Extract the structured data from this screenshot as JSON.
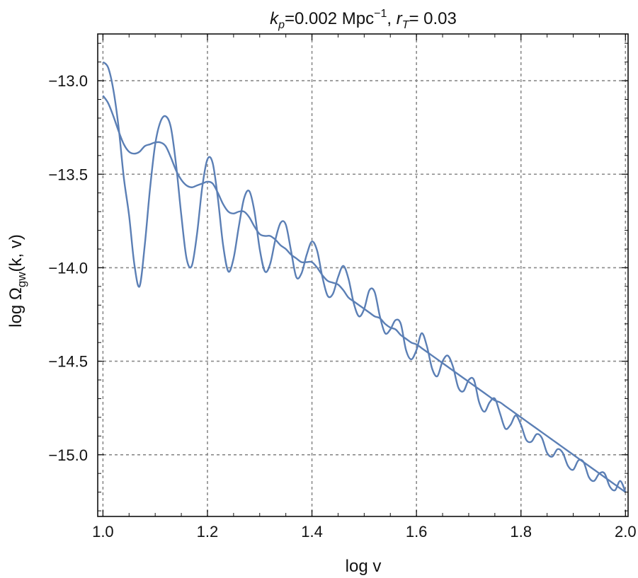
{
  "chart_data": {
    "type": "line",
    "title": {
      "k_symbol": "k",
      "k_subscript": "p",
      "k_value": "=0.002 Mpc",
      "k_unit_superscript": "−1",
      "separator": ", ",
      "r_symbol": "r",
      "r_subscript": "T",
      "r_value": "= 0.03"
    },
    "xlabel": "log v",
    "ylabel": {
      "prefix": "log Ω",
      "subscript": "gw",
      "suffix": "(k, v)"
    },
    "xlim": [
      0.99,
      2.005
    ],
    "ylim": [
      -15.33,
      -12.75
    ],
    "x_ticks": [
      {
        "value": 1.0,
        "label": "1.0"
      },
      {
        "value": 1.2,
        "label": "1.2"
      },
      {
        "value": 1.4,
        "label": "1.4"
      },
      {
        "value": 1.6,
        "label": "1.6"
      },
      {
        "value": 1.8,
        "label": "1.8"
      },
      {
        "value": 2.0,
        "label": "2.0"
      }
    ],
    "y_ticks": [
      {
        "value": -13.0,
        "label": "−13.0"
      },
      {
        "value": -13.5,
        "label": "−13.5"
      },
      {
        "value": -14.0,
        "label": "−14.0"
      },
      {
        "value": -14.5,
        "label": "−14.5"
      },
      {
        "value": -15.0,
        "label": "−15.0"
      }
    ],
    "grid": true,
    "line_color": "#5b7fb5",
    "series": [
      {
        "x": [
          1.0,
          1.01,
          1.02,
          1.03,
          1.04,
          1.05,
          1.06,
          1.07,
          1.08,
          1.09,
          1.1,
          1.11,
          1.12,
          1.13,
          1.14,
          1.15,
          1.16,
          1.17,
          1.18,
          1.19,
          1.2,
          1.21,
          1.22,
          1.23,
          1.24,
          1.25,
          1.26,
          1.27,
          1.28,
          1.29,
          1.3,
          1.31,
          1.32,
          1.33,
          1.34,
          1.35,
          1.36,
          1.37,
          1.38,
          1.39,
          1.4,
          1.41,
          1.42,
          1.43,
          1.44,
          1.45,
          1.46,
          1.47,
          1.48,
          1.49,
          1.5,
          1.51,
          1.52,
          1.53,
          1.54,
          1.55,
          1.56,
          1.57,
          1.58,
          1.59,
          1.6,
          1.61,
          1.62,
          1.63,
          1.64,
          1.65,
          1.66,
          1.67,
          1.68,
          1.69,
          1.7,
          1.71,
          1.72,
          1.73,
          1.74,
          1.75,
          1.76,
          1.77,
          1.78,
          1.79,
          1.8,
          1.81,
          1.82,
          1.83,
          1.84,
          1.85,
          1.86,
          1.87,
          1.88,
          1.89,
          1.9,
          1.91,
          1.92,
          1.93,
          1.94,
          1.95,
          1.96,
          1.97,
          1.98,
          1.99,
          2.0
        ],
        "y": [
          -12.9,
          -12.93,
          -13.05,
          -13.25,
          -13.52,
          -13.72,
          -13.98,
          -14.1,
          -13.88,
          -13.58,
          -13.34,
          -13.22,
          -13.19,
          -13.25,
          -13.45,
          -13.72,
          -13.95,
          -13.99,
          -13.82,
          -13.57,
          -13.42,
          -13.44,
          -13.63,
          -13.88,
          -14.02,
          -13.95,
          -13.78,
          -13.63,
          -13.59,
          -13.7,
          -13.9,
          -14.02,
          -13.98,
          -13.85,
          -13.76,
          -13.77,
          -13.91,
          -14.05,
          -14.03,
          -13.93,
          -13.86,
          -13.91,
          -14.05,
          -14.15,
          -14.14,
          -14.05,
          -13.99,
          -14.06,
          -14.19,
          -14.26,
          -14.22,
          -14.12,
          -14.13,
          -14.26,
          -14.35,
          -14.33,
          -14.28,
          -14.3,
          -14.44,
          -14.49,
          -14.44,
          -14.35,
          -14.42,
          -14.54,
          -14.58,
          -14.5,
          -14.47,
          -14.53,
          -14.64,
          -14.66,
          -14.6,
          -14.6,
          -14.72,
          -14.77,
          -14.72,
          -14.7,
          -14.78,
          -14.86,
          -14.84,
          -14.79,
          -14.84,
          -14.92,
          -14.93,
          -14.89,
          -14.91,
          -14.99,
          -15.01,
          -14.97,
          -14.99,
          -15.06,
          -15.08,
          -15.03,
          -15.04,
          -15.12,
          -15.14,
          -15.1,
          -15.1,
          -15.17,
          -15.19,
          -15.14,
          -15.2
        ]
      },
      {
        "x": [
          1.0,
          1.01,
          1.02,
          1.03,
          1.04,
          1.05,
          1.06,
          1.07,
          1.08,
          1.09,
          1.1,
          1.11,
          1.12,
          1.13,
          1.14,
          1.15,
          1.16,
          1.17,
          1.18,
          1.19,
          1.2,
          1.21,
          1.22,
          1.23,
          1.24,
          1.25,
          1.26,
          1.27,
          1.28,
          1.29,
          1.3,
          1.31,
          1.32,
          1.33,
          1.34,
          1.35,
          1.36,
          1.37,
          1.38,
          1.39,
          1.4,
          1.41,
          1.42,
          1.43,
          1.44,
          1.45,
          1.46,
          1.47,
          1.48,
          1.49,
          1.5,
          1.51,
          1.52,
          1.53,
          1.54,
          1.55,
          1.56,
          1.57,
          1.58,
          1.59,
          1.6,
          1.61,
          1.62,
          1.63,
          1.64,
          1.65,
          1.66,
          1.67,
          1.68,
          1.69,
          1.7,
          1.71,
          1.72,
          1.73,
          1.74,
          1.75,
          1.76,
          1.77,
          1.78,
          1.79,
          1.8,
          1.81,
          1.82,
          1.83,
          1.84,
          1.85,
          1.86,
          1.87,
          1.88,
          1.89,
          1.9,
          1.91,
          1.92,
          1.93,
          1.94,
          1.95,
          1.96,
          1.97,
          1.98,
          1.99,
          2.0
        ],
        "y": [
          -13.08,
          -13.12,
          -13.19,
          -13.27,
          -13.34,
          -13.38,
          -13.39,
          -13.38,
          -13.35,
          -13.34,
          -13.33,
          -13.33,
          -13.35,
          -13.41,
          -13.48,
          -13.53,
          -13.56,
          -13.57,
          -13.56,
          -13.55,
          -13.54,
          -13.55,
          -13.6,
          -13.66,
          -13.7,
          -13.71,
          -13.7,
          -13.7,
          -13.73,
          -13.78,
          -13.82,
          -13.83,
          -13.83,
          -13.85,
          -13.88,
          -13.9,
          -13.93,
          -13.95,
          -13.97,
          -13.97,
          -13.97,
          -14.0,
          -14.04,
          -14.07,
          -14.08,
          -14.09,
          -14.12,
          -14.16,
          -14.18,
          -14.2,
          -14.22,
          -14.24,
          -14.26,
          -14.27,
          -14.3,
          -14.32,
          -14.33,
          -14.36,
          -14.38,
          -14.4,
          -14.41,
          -14.43,
          -14.45,
          -14.47,
          -14.49,
          -14.51,
          -14.53,
          -14.55,
          -14.57,
          -14.59,
          -14.61,
          -14.63,
          -14.65,
          -14.67,
          -14.69,
          -14.71,
          -14.72,
          -14.74,
          -14.76,
          -14.78,
          -14.8,
          -14.82,
          -14.84,
          -14.86,
          -14.88,
          -14.9,
          -14.92,
          -14.94,
          -14.96,
          -14.98,
          -15.0,
          -15.02,
          -15.04,
          -15.06,
          -15.08,
          -15.1,
          -15.12,
          -15.14,
          -15.16,
          -15.18,
          -15.2
        ]
      }
    ]
  }
}
